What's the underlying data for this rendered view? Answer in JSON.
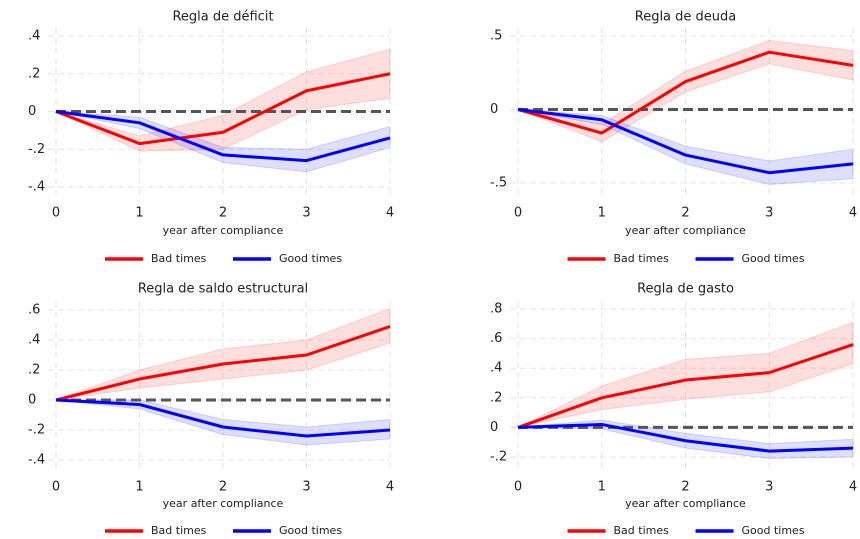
{
  "chart_data": [
    {
      "type": "line",
      "title": "Regla de déficit",
      "xlabel": "year after compliance",
      "x": [
        0,
        1,
        2,
        3,
        4
      ],
      "xlim": [
        0,
        4
      ],
      "xticks": [
        0,
        1,
        2,
        3,
        4
      ],
      "ylim": [
        -0.4,
        0.4
      ],
      "yticks": [
        {
          "value": -0.4,
          "label": "-.4"
        },
        {
          "value": -0.2,
          "label": "-.2"
        },
        0,
        {
          "value": 0.2,
          "label": ".2"
        },
        {
          "value": 0.4,
          "label": ".4"
        }
      ],
      "hline": 0,
      "grid": true,
      "series": [
        {
          "name": "Bad times",
          "color": "#ff0000",
          "values": [
            0,
            -0.17,
            -0.11,
            0.11,
            0.2
          ],
          "lower": [
            0,
            -0.21,
            -0.2,
            0.01,
            0.07
          ],
          "upper": [
            0,
            -0.13,
            -0.02,
            0.21,
            0.33
          ]
        },
        {
          "name": "Good times",
          "color": "#0000ff",
          "values": [
            0,
            -0.06,
            -0.23,
            -0.26,
            -0.14
          ],
          "lower": [
            0,
            -0.09,
            -0.27,
            -0.32,
            -0.19
          ],
          "upper": [
            0,
            -0.03,
            -0.19,
            -0.2,
            -0.08
          ]
        }
      ]
    },
    {
      "type": "line",
      "title": "Regla de deuda",
      "xlabel": "year after compliance",
      "x": [
        0,
        1,
        2,
        3,
        4
      ],
      "xlim": [
        0,
        4
      ],
      "xticks": [
        0,
        1,
        2,
        3,
        4
      ],
      "ylim": [
        -0.5,
        0.5
      ],
      "yticks": [
        {
          "value": -0.5,
          "label": "-.5"
        },
        0,
        {
          "value": 0.5,
          "label": ".5"
        }
      ],
      "hline": 0,
      "grid": true,
      "series": [
        {
          "name": "Bad times",
          "color": "#ff0000",
          "values": [
            0,
            -0.16,
            0.19,
            0.39,
            0.3
          ],
          "lower": [
            0,
            -0.22,
            0.12,
            0.31,
            0.2
          ],
          "upper": [
            0,
            -0.1,
            0.26,
            0.47,
            0.4
          ]
        },
        {
          "name": "Good times",
          "color": "#0000ff",
          "values": [
            0,
            -0.07,
            -0.31,
            -0.43,
            -0.37
          ],
          "lower": [
            0,
            -0.1,
            -0.37,
            -0.51,
            -0.47
          ],
          "upper": [
            0,
            -0.04,
            -0.25,
            -0.35,
            -0.27
          ]
        }
      ]
    },
    {
      "type": "line",
      "title": "Regla de saldo estructural",
      "xlabel": "year after compliance",
      "x": [
        0,
        1,
        2,
        3,
        4
      ],
      "xlim": [
        0,
        4
      ],
      "xticks": [
        0,
        1,
        2,
        3,
        4
      ],
      "ylim": [
        -0.4,
        0.6
      ],
      "yticks": [
        {
          "value": -0.4,
          "label": "-.4"
        },
        {
          "value": -0.2,
          "label": "-.2"
        },
        0,
        {
          "value": 0.2,
          "label": ".2"
        },
        {
          "value": 0.4,
          "label": ".4"
        },
        {
          "value": 0.6,
          "label": ".6"
        }
      ],
      "hline": 0,
      "grid": true,
      "series": [
        {
          "name": "Bad times",
          "color": "#ff0000",
          "values": [
            0,
            0.14,
            0.24,
            0.3,
            0.49
          ],
          "lower": [
            0,
            0.08,
            0.14,
            0.2,
            0.38
          ],
          "upper": [
            0,
            0.2,
            0.34,
            0.4,
            0.61
          ]
        },
        {
          "name": "Good times",
          "color": "#0000ff",
          "values": [
            0,
            -0.03,
            -0.18,
            -0.24,
            -0.2
          ],
          "lower": [
            0,
            -0.06,
            -0.23,
            -0.3,
            -0.26
          ],
          "upper": [
            0,
            0,
            -0.13,
            -0.18,
            -0.13
          ]
        }
      ]
    },
    {
      "type": "line",
      "title": "Regla de gasto",
      "xlabel": "year after compliance",
      "x": [
        0,
        1,
        2,
        3,
        4
      ],
      "xlim": [
        0,
        4
      ],
      "xticks": [
        0,
        1,
        2,
        3,
        4
      ],
      "ylim": [
        -0.2,
        0.8
      ],
      "yticks": [
        {
          "value": -0.2,
          "label": "-.2"
        },
        0,
        {
          "value": 0.2,
          "label": ".2"
        },
        {
          "value": 0.4,
          "label": ".4"
        },
        {
          "value": 0.6,
          "label": ".6"
        },
        {
          "value": 0.8,
          "label": ".8"
        }
      ],
      "hline": 0,
      "grid": true,
      "series": [
        {
          "name": "Bad times",
          "color": "#ff0000",
          "values": [
            0,
            0.2,
            0.32,
            0.37,
            0.56
          ],
          "lower": [
            0,
            0.12,
            0.19,
            0.24,
            0.43
          ],
          "upper": [
            0,
            0.28,
            0.46,
            0.5,
            0.71
          ]
        },
        {
          "name": "Good times",
          "color": "#0000ff",
          "values": [
            0,
            0.02,
            -0.09,
            -0.16,
            -0.14
          ],
          "lower": [
            0,
            -0.01,
            -0.14,
            -0.21,
            -0.2
          ],
          "upper": [
            0,
            0.05,
            -0.04,
            -0.11,
            -0.08
          ]
        }
      ]
    }
  ]
}
